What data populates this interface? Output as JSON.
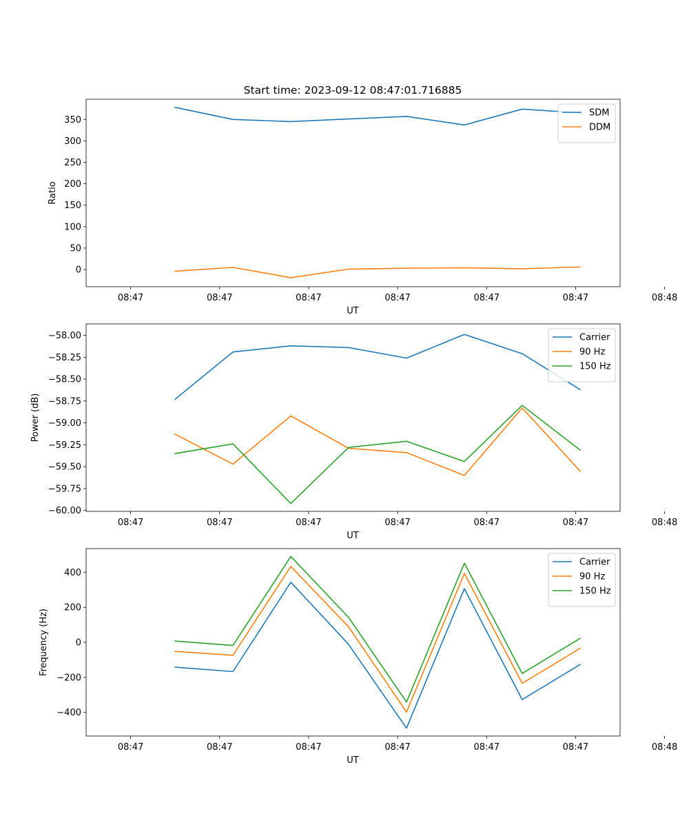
{
  "colors": {
    "blue": "#1f77b4",
    "orange": "#ff7f0e",
    "green": "#2ca02c"
  },
  "chart_data": [
    {
      "type": "line",
      "title": "Start time: 2023-09-12 08:47:01.716885",
      "xlabel": "UT",
      "ylabel": "Ratio",
      "x_tick_labels": [
        "08:47",
        "08:47",
        "08:47",
        "08:47",
        "08:47",
        "08:47",
        "08:48"
      ],
      "x": [
        1.5,
        2.15,
        2.8,
        3.45,
        4.1,
        4.75,
        5.4,
        6.05
      ],
      "xlim": [
        0.5,
        6.5
      ],
      "y_ticks": [
        0,
        50,
        100,
        150,
        200,
        250,
        300,
        350
      ],
      "ylim": [
        -40,
        397
      ],
      "legend_position": "top-right",
      "series": [
        {
          "name": "SDM",
          "color": "blue",
          "values": [
            378,
            350,
            345,
            351,
            357,
            337,
            374,
            365
          ]
        },
        {
          "name": "DDM",
          "color": "orange",
          "values": [
            -4,
            5,
            -19,
            1,
            3,
            4,
            2,
            6
          ]
        }
      ]
    },
    {
      "type": "line",
      "title": "",
      "xlabel": "UT",
      "ylabel": "Power (dB)",
      "x_tick_labels": [
        "08:47",
        "08:47",
        "08:47",
        "08:47",
        "08:47",
        "08:47",
        "08:48"
      ],
      "x": [
        1.5,
        2.15,
        2.8,
        3.45,
        4.1,
        4.75,
        5.4,
        6.05
      ],
      "xlim": [
        0.5,
        6.5
      ],
      "y_ticks": [
        -60.0,
        -59.75,
        -59.5,
        -59.25,
        -59.0,
        -58.75,
        -58.5,
        -58.25,
        -58.0
      ],
      "y_tick_labels": [
        "−60.00",
        "−59.75",
        "−59.50",
        "−59.25",
        "−59.00",
        "−58.75",
        "−58.50",
        "−58.25",
        "−58.00"
      ],
      "ylim": [
        -60.01,
        -57.87
      ],
      "legend_position": "top-right",
      "series": [
        {
          "name": "Carrier",
          "color": "blue",
          "values": [
            -58.73,
            -58.19,
            -58.12,
            -58.14,
            -58.26,
            -57.99,
            -58.21,
            -58.62
          ]
        },
        {
          "name": "90 Hz",
          "color": "orange",
          "values": [
            -59.13,
            -59.47,
            -58.92,
            -59.29,
            -59.34,
            -59.6,
            -58.83,
            -59.55
          ]
        },
        {
          "name": "150 Hz",
          "color": "green",
          "values": [
            -59.35,
            -59.24,
            -59.92,
            -59.28,
            -59.21,
            -59.44,
            -58.8,
            -59.31
          ]
        }
      ]
    },
    {
      "type": "line",
      "title": "",
      "xlabel": "UT",
      "ylabel": "Frequency (Hz)",
      "x_tick_labels": [
        "08:47",
        "08:47",
        "08:47",
        "08:47",
        "08:47",
        "08:47",
        "08:48"
      ],
      "x": [
        1.5,
        2.15,
        2.8,
        3.45,
        4.1,
        4.75,
        5.4,
        6.05
      ],
      "xlim": [
        0.5,
        6.5
      ],
      "y_ticks": [
        -400,
        -200,
        0,
        200,
        400
      ],
      "y_tick_labels": [
        "−400",
        "−200",
        "0",
        "200",
        "400"
      ],
      "ylim": [
        -535,
        535
      ],
      "legend_position": "top-right",
      "series": [
        {
          "name": "Carrier",
          "color": "blue",
          "values": [
            -142,
            -167,
            343,
            -12,
            -490,
            306,
            -327,
            -127
          ]
        },
        {
          "name": "90 Hz",
          "color": "orange",
          "values": [
            -52,
            -74,
            433,
            88,
            -398,
            393,
            -234,
            -35
          ]
        },
        {
          "name": "150 Hz",
          "color": "green",
          "values": [
            7,
            -18,
            490,
            142,
            -341,
            452,
            -178,
            22
          ]
        }
      ]
    }
  ]
}
